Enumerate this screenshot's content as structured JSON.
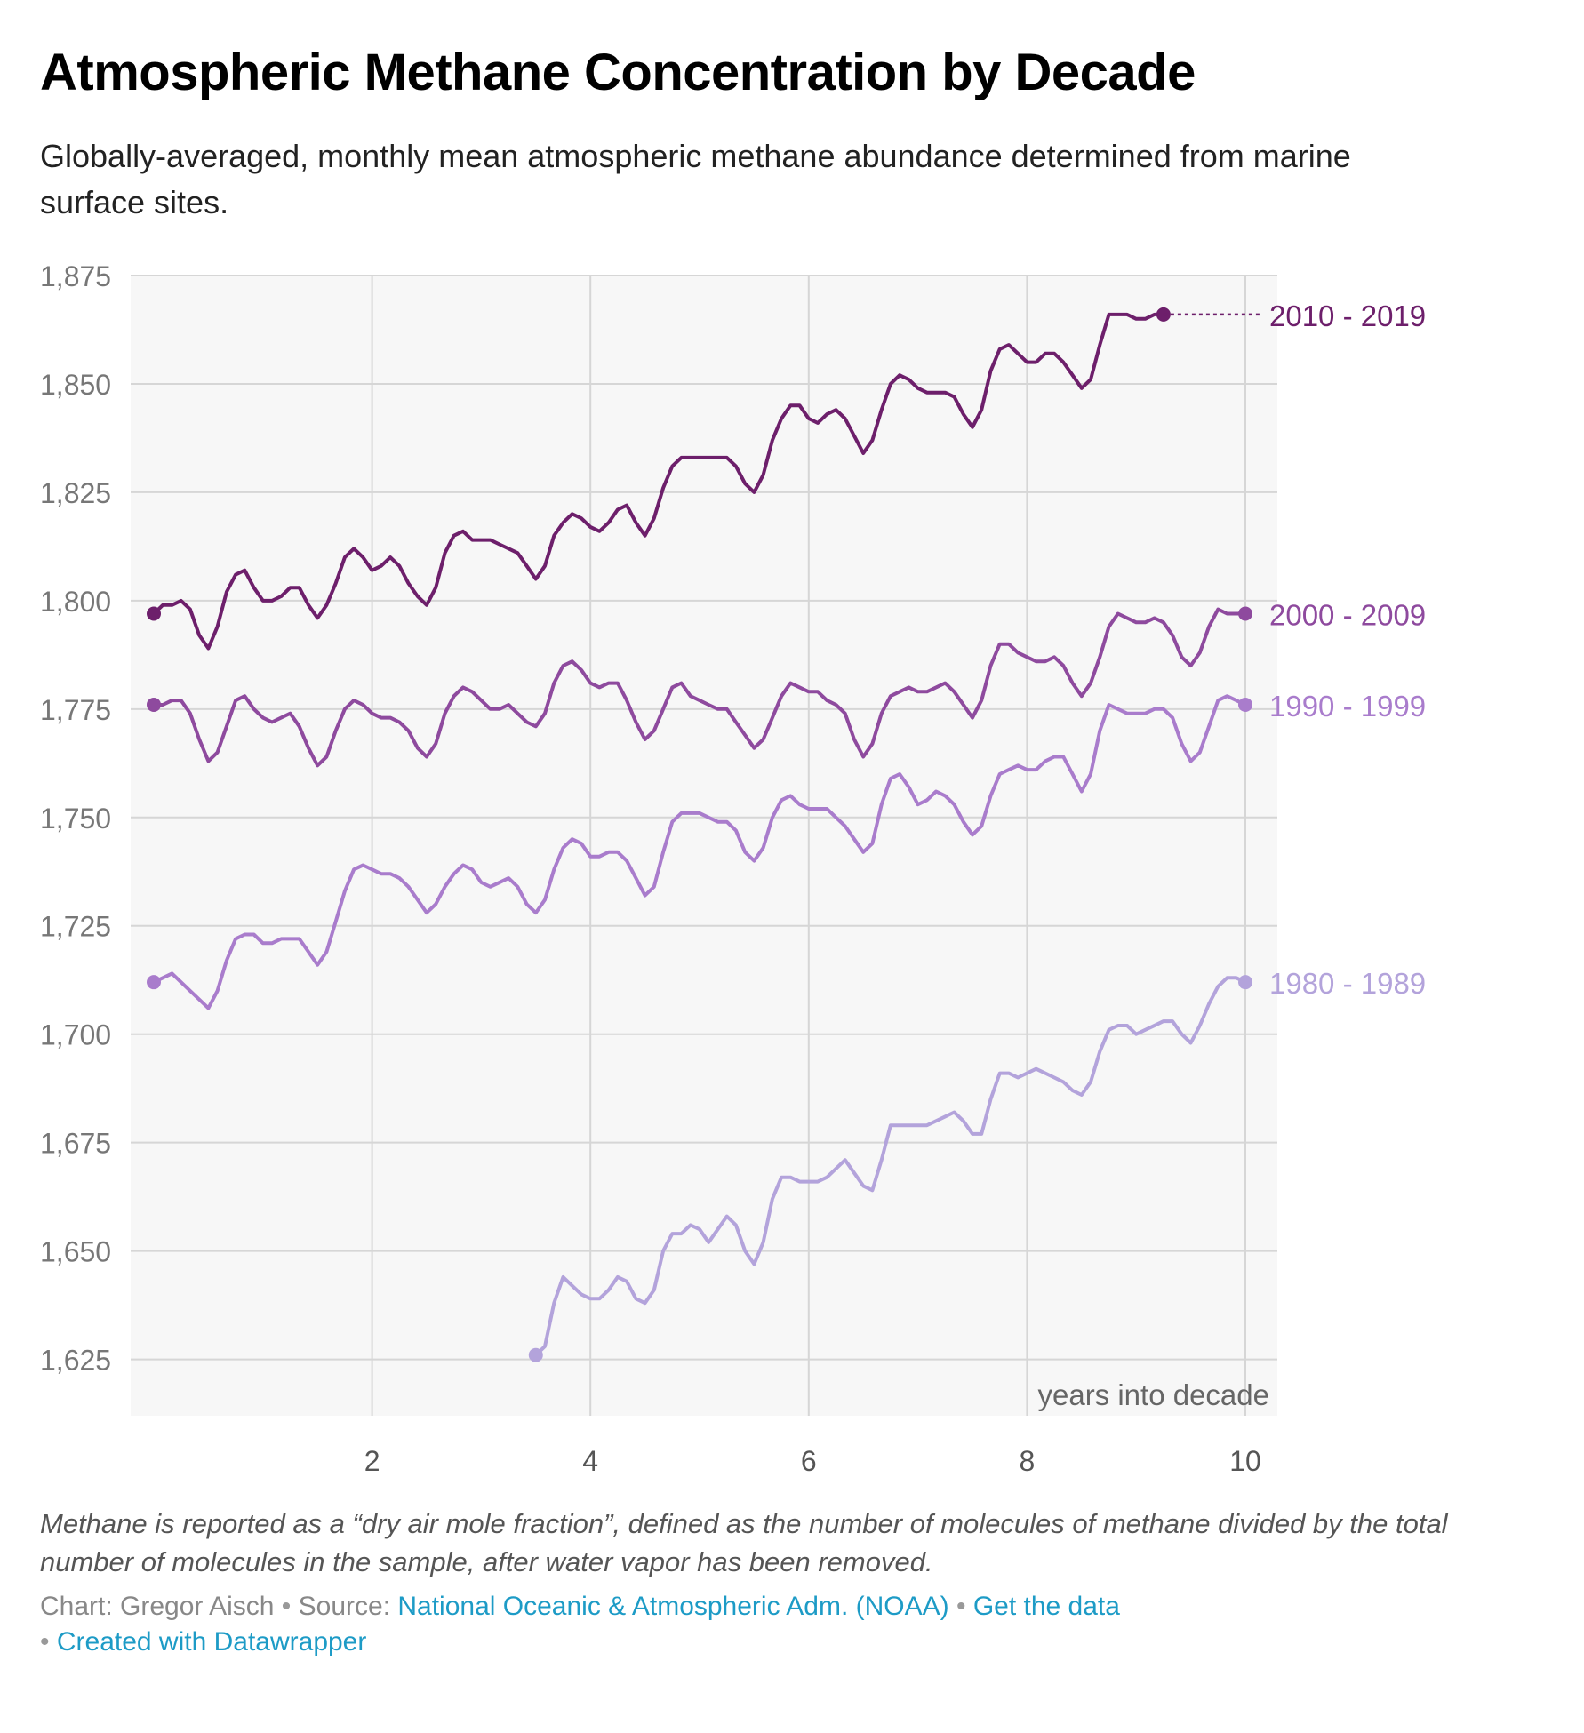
{
  "header": {
    "title": "Atmospheric Methane Concentration by Decade",
    "subtitle": "Globally-averaged, monthly mean atmospheric methane abundance determined from marine surface sites."
  },
  "notes": "Methane is reported as a “dry air mole fraction”, defined as the number of molecules of methane divided by the total number of molecules in the sample, after water vapor has been removed.",
  "footer": {
    "chart_label": "Chart: Gregor Aisch",
    "source_label": "Source:",
    "source_link": "National Oceanic & Atmospheric Adm. (NOAA)",
    "get_data": "Get the data",
    "created_with": "Created with Datawrapper",
    "separator": "•"
  },
  "colors": {
    "2010-2019": "#6d1f6b",
    "2000-2009": "#8e4a9e",
    "1990-1999": "#a97ccc",
    "1980-1989": "#b3a3db",
    "plot_bg": "#f7f7f7",
    "grid": "#d6d6d6",
    "link": "#1d9bc6"
  },
  "chart_data": {
    "type": "line",
    "xlabel": "years into decade",
    "ylabel": "",
    "xlim": [
      0,
      10
    ],
    "ylim": [
      1612,
      1875
    ],
    "x_ticks": [
      2,
      4,
      6,
      8,
      10
    ],
    "x_tick_labels": [
      "2",
      "4",
      "6",
      "8",
      "10"
    ],
    "y_ticks": [
      1625,
      1650,
      1675,
      1700,
      1725,
      1750,
      1775,
      1800,
      1825,
      1850,
      1875
    ],
    "y_tick_labels": [
      "1,625",
      "1,650",
      "1,675",
      "1,700",
      "1,725",
      "1,750",
      "1,775",
      "1,800",
      "1,825",
      "1,850",
      "1,875"
    ],
    "grid": true,
    "series": [
      {
        "name": "2010 - 2019",
        "x": [
          0,
          0.083,
          0.167,
          0.25,
          0.333,
          0.417,
          0.5,
          0.583,
          0.667,
          0.75,
          0.833,
          0.917,
          1,
          1.083,
          1.167,
          1.25,
          1.333,
          1.417,
          1.5,
          1.583,
          1.667,
          1.75,
          1.833,
          1.917,
          2,
          2.083,
          2.167,
          2.25,
          2.333,
          2.417,
          2.5,
          2.583,
          2.667,
          2.75,
          2.833,
          2.917,
          3,
          3.083,
          3.167,
          3.25,
          3.333,
          3.417,
          3.5,
          3.583,
          3.667,
          3.75,
          3.833,
          3.917,
          4,
          4.083,
          4.167,
          4.25,
          4.333,
          4.417,
          4.5,
          4.583,
          4.667,
          4.75,
          4.833,
          4.917,
          5,
          5.083,
          5.167,
          5.25,
          5.333,
          5.417,
          5.5,
          5.583,
          5.667,
          5.75,
          5.833,
          5.917,
          6,
          6.083,
          6.167,
          6.25,
          6.333,
          6.417,
          6.5,
          6.583,
          6.667,
          6.75,
          6.833,
          6.917,
          7,
          7.083,
          7.167,
          7.25,
          7.333,
          7.417,
          7.5,
          7.583,
          7.667,
          7.75,
          7.833,
          7.917,
          8,
          8.083,
          8.167,
          8.25,
          8.333,
          8.417,
          8.5,
          8.583,
          8.667,
          8.75,
          8.833,
          8.917,
          9,
          9.083,
          9.167,
          9.25
        ],
        "values": [
          1797,
          1799,
          1799,
          1800,
          1798,
          1792,
          1789,
          1794,
          1802,
          1806,
          1807,
          1803,
          1800,
          1800,
          1801,
          1803,
          1803,
          1799,
          1796,
          1799,
          1804,
          1810,
          1812,
          1810,
          1807,
          1808,
          1810,
          1808,
          1804,
          1801,
          1799,
          1803,
          1811,
          1815,
          1816,
          1814,
          1814,
          1814,
          1813,
          1812,
          1811,
          1808,
          1805,
          1808,
          1815,
          1818,
          1820,
          1819,
          1817,
          1816,
          1818,
          1821,
          1822,
          1818,
          1815,
          1819,
          1826,
          1831,
          1833,
          1833,
          1833,
          1833,
          1833,
          1833,
          1831,
          1827,
          1825,
          1829,
          1837,
          1842,
          1845,
          1845,
          1842,
          1841,
          1843,
          1844,
          1842,
          1838,
          1834,
          1837,
          1844,
          1850,
          1852,
          1851,
          1849,
          1848,
          1848,
          1848,
          1847,
          1843,
          1840,
          1844,
          1853,
          1858,
          1859,
          1857,
          1855,
          1855,
          1857,
          1857,
          1855,
          1852,
          1849,
          1851,
          1859,
          1866,
          1866,
          1866,
          1865,
          1865,
          1866,
          1866
        ]
      },
      {
        "name": "2000 - 2009",
        "x": [
          0,
          0.083,
          0.167,
          0.25,
          0.333,
          0.417,
          0.5,
          0.583,
          0.667,
          0.75,
          0.833,
          0.917,
          1,
          1.083,
          1.167,
          1.25,
          1.333,
          1.417,
          1.5,
          1.583,
          1.667,
          1.75,
          1.833,
          1.917,
          2,
          2.083,
          2.167,
          2.25,
          2.333,
          2.417,
          2.5,
          2.583,
          2.667,
          2.75,
          2.833,
          2.917,
          3,
          3.083,
          3.167,
          3.25,
          3.333,
          3.417,
          3.5,
          3.583,
          3.667,
          3.75,
          3.833,
          3.917,
          4,
          4.083,
          4.167,
          4.25,
          4.333,
          4.417,
          4.5,
          4.583,
          4.667,
          4.75,
          4.833,
          4.917,
          5,
          5.083,
          5.167,
          5.25,
          5.333,
          5.417,
          5.5,
          5.583,
          5.667,
          5.75,
          5.833,
          5.917,
          6,
          6.083,
          6.167,
          6.25,
          6.333,
          6.417,
          6.5,
          6.583,
          6.667,
          6.75,
          6.833,
          6.917,
          7,
          7.083,
          7.167,
          7.25,
          7.333,
          7.417,
          7.5,
          7.583,
          7.667,
          7.75,
          7.833,
          7.917,
          8,
          8.083,
          8.167,
          8.25,
          8.333,
          8.417,
          8.5,
          8.583,
          8.667,
          8.75,
          8.833,
          8.917,
          9,
          9.083,
          9.167,
          9.25,
          9.333,
          9.417,
          9.5,
          9.583,
          9.667,
          9.75,
          9.833,
          9.917,
          10
        ],
        "values": [
          1776,
          1776,
          1777,
          1777,
          1774,
          1768,
          1763,
          1765,
          1771,
          1777,
          1778,
          1775,
          1773,
          1772,
          1773,
          1774,
          1771,
          1766,
          1762,
          1764,
          1770,
          1775,
          1777,
          1776,
          1774,
          1773,
          1773,
          1772,
          1770,
          1766,
          1764,
          1767,
          1774,
          1778,
          1780,
          1779,
          1777,
          1775,
          1775,
          1776,
          1774,
          1772,
          1771,
          1774,
          1781,
          1785,
          1786,
          1784,
          1781,
          1780,
          1781,
          1781,
          1777,
          1772,
          1768,
          1770,
          1775,
          1780,
          1781,
          1778,
          1777,
          1776,
          1775,
          1775,
          1772,
          1769,
          1766,
          1768,
          1773,
          1778,
          1781,
          1780,
          1779,
          1779,
          1777,
          1776,
          1774,
          1768,
          1764,
          1767,
          1774,
          1778,
          1779,
          1780,
          1779,
          1779,
          1780,
          1781,
          1779,
          1776,
          1773,
          1777,
          1785,
          1790,
          1790,
          1788,
          1787,
          1786,
          1786,
          1787,
          1785,
          1781,
          1778,
          1781,
          1787,
          1794,
          1797,
          1796,
          1795,
          1795,
          1796,
          1795,
          1792,
          1787,
          1785,
          1788,
          1794,
          1798,
          1797,
          1797,
          1797
        ]
      },
      {
        "name": "1990 - 1999",
        "x": [
          0,
          0.083,
          0.167,
          0.25,
          0.333,
          0.417,
          0.5,
          0.583,
          0.667,
          0.75,
          0.833,
          0.917,
          1,
          1.083,
          1.167,
          1.25,
          1.333,
          1.417,
          1.5,
          1.583,
          1.667,
          1.75,
          1.833,
          1.917,
          2,
          2.083,
          2.167,
          2.25,
          2.333,
          2.417,
          2.5,
          2.583,
          2.667,
          2.75,
          2.833,
          2.917,
          3,
          3.083,
          3.167,
          3.25,
          3.333,
          3.417,
          3.5,
          3.583,
          3.667,
          3.75,
          3.833,
          3.917,
          4,
          4.083,
          4.167,
          4.25,
          4.333,
          4.417,
          4.5,
          4.583,
          4.667,
          4.75,
          4.833,
          4.917,
          5,
          5.083,
          5.167,
          5.25,
          5.333,
          5.417,
          5.5,
          5.583,
          5.667,
          5.75,
          5.833,
          5.917,
          6,
          6.083,
          6.167,
          6.25,
          6.333,
          6.417,
          6.5,
          6.583,
          6.667,
          6.75,
          6.833,
          6.917,
          7,
          7.083,
          7.167,
          7.25,
          7.333,
          7.417,
          7.5,
          7.583,
          7.667,
          7.75,
          7.833,
          7.917,
          8,
          8.083,
          8.167,
          8.25,
          8.333,
          8.417,
          8.5,
          8.583,
          8.667,
          8.75,
          8.833,
          8.917,
          9,
          9.083,
          9.167,
          9.25,
          9.333,
          9.417,
          9.5,
          9.583,
          9.667,
          9.75,
          9.833,
          9.917,
          10
        ],
        "values": [
          1712,
          1713,
          1714,
          1712,
          1710,
          1708,
          1706,
          1710,
          1717,
          1722,
          1723,
          1723,
          1721,
          1721,
          1722,
          1722,
          1722,
          1719,
          1716,
          1719,
          1726,
          1733,
          1738,
          1739,
          1738,
          1737,
          1737,
          1736,
          1734,
          1731,
          1728,
          1730,
          1734,
          1737,
          1739,
          1738,
          1735,
          1734,
          1735,
          1736,
          1734,
          1730,
          1728,
          1731,
          1738,
          1743,
          1745,
          1744,
          1741,
          1741,
          1742,
          1742,
          1740,
          1736,
          1732,
          1734,
          1742,
          1749,
          1751,
          1751,
          1751,
          1750,
          1749,
          1749,
          1747,
          1742,
          1740,
          1743,
          1750,
          1754,
          1755,
          1753,
          1752,
          1752,
          1752,
          1750,
          1748,
          1745,
          1742,
          1744,
          1753,
          1759,
          1760,
          1757,
          1753,
          1754,
          1756,
          1755,
          1753,
          1749,
          1746,
          1748,
          1755,
          1760,
          1761,
          1762,
          1761,
          1761,
          1763,
          1764,
          1764,
          1760,
          1756,
          1760,
          1770,
          1776,
          1775,
          1774,
          1774,
          1774,
          1775,
          1775,
          1773,
          1767,
          1763,
          1765,
          1771,
          1777,
          1778,
          1777,
          1776
        ]
      },
      {
        "name": "1980 - 1989",
        "x": [
          3.5,
          3.583,
          3.667,
          3.75,
          3.833,
          3.917,
          4,
          4.083,
          4.167,
          4.25,
          4.333,
          4.417,
          4.5,
          4.583,
          4.667,
          4.75,
          4.833,
          4.917,
          5,
          5.083,
          5.167,
          5.25,
          5.333,
          5.417,
          5.5,
          5.583,
          5.667,
          5.75,
          5.833,
          5.917,
          6,
          6.083,
          6.167,
          6.25,
          6.333,
          6.417,
          6.5,
          6.583,
          6.667,
          6.75,
          6.833,
          6.917,
          7,
          7.083,
          7.167,
          7.25,
          7.333,
          7.417,
          7.5,
          7.583,
          7.667,
          7.75,
          7.833,
          7.917,
          8,
          8.083,
          8.167,
          8.25,
          8.333,
          8.417,
          8.5,
          8.583,
          8.667,
          8.75,
          8.833,
          8.917,
          9,
          9.083,
          9.167,
          9.25,
          9.333,
          9.417,
          9.5,
          9.583,
          9.667,
          9.75,
          9.833,
          9.917,
          10
        ],
        "values": [
          1626,
          1628,
          1638,
          1644,
          1642,
          1640,
          1639,
          1639,
          1641,
          1644,
          1643,
          1639,
          1638,
          1641,
          1650,
          1654,
          1654,
          1656,
          1655,
          1652,
          1655,
          1658,
          1656,
          1650,
          1647,
          1652,
          1662,
          1667,
          1667,
          1666,
          1666,
          1666,
          1667,
          1669,
          1671,
          1668,
          1665,
          1664,
          1671,
          1679,
          1679,
          1679,
          1679,
          1679,
          1680,
          1681,
          1682,
          1680,
          1677,
          1677,
          1685,
          1691,
          1691,
          1690,
          1691,
          1692,
          1691,
          1690,
          1689,
          1687,
          1686,
          1689,
          1696,
          1701,
          1702,
          1702,
          1700,
          1701,
          1702,
          1703,
          1703,
          1700,
          1698,
          1702,
          1707,
          1711,
          1713,
          1713,
          1712
        ]
      }
    ]
  }
}
